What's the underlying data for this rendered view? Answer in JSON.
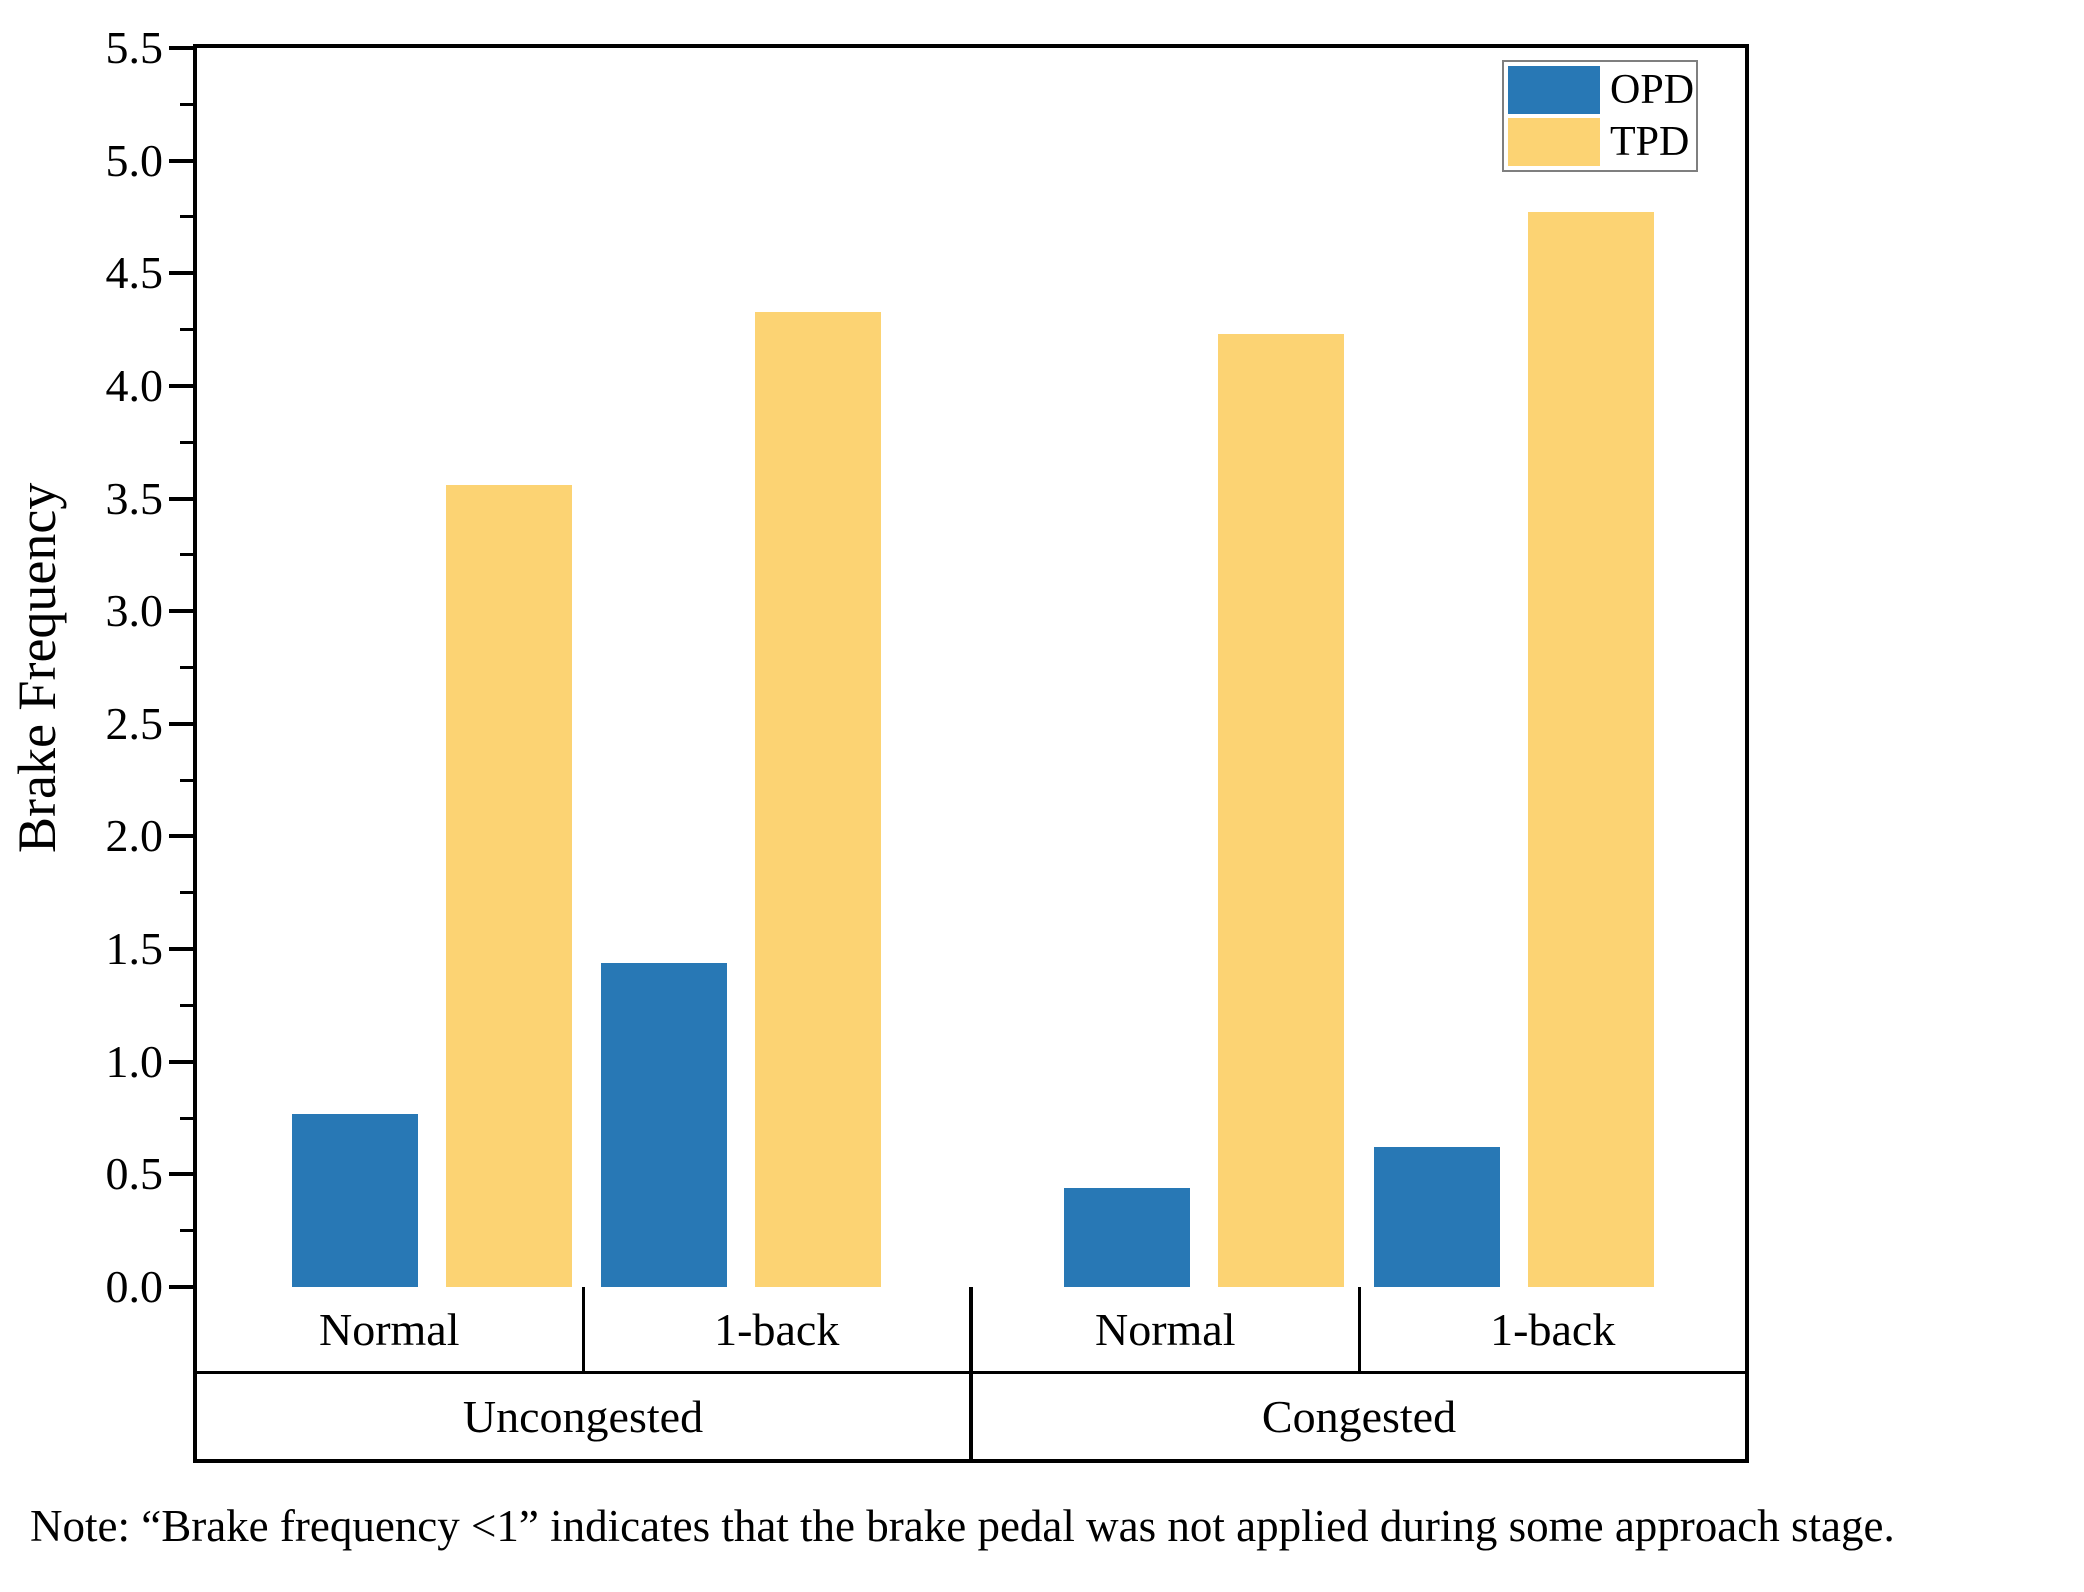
{
  "figure": {
    "note": "Note: “Brake frequency <1” indicates that the brake pedal was not applied during some approach stage."
  },
  "chart_data": {
    "type": "bar",
    "title": "",
    "xlabel": "",
    "ylabel": "Brake Frequency",
    "ylim": [
      0,
      5.5
    ],
    "ytick_labels": [
      "0.0",
      "0.5",
      "1.0",
      "1.5",
      "2.0",
      "2.5",
      "3.0",
      "3.5",
      "4.0",
      "4.5",
      "5.0",
      "5.5"
    ],
    "minor_tick_step": 0.25,
    "grid": false,
    "legend_position": "top-right",
    "categories": [
      "Normal",
      "1-back",
      "Normal",
      "1-back"
    ],
    "category_groups": [
      {
        "label": "Uncongested",
        "span": 2
      },
      {
        "label": "Congested",
        "span": 2
      }
    ],
    "series": [
      {
        "name": "OPD",
        "color": "#2878B5",
        "values": [
          0.77,
          1.44,
          0.44,
          0.62
        ]
      },
      {
        "name": "TPD",
        "color": "#FCD373",
        "values": [
          3.56,
          4.33,
          4.23,
          4.77
        ]
      }
    ]
  }
}
